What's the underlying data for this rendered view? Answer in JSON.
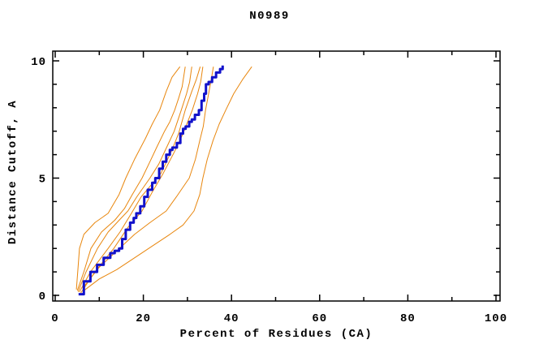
{
  "page": {
    "background": "#ffffff"
  },
  "chart_data": {
    "type": "line",
    "title": "N0989",
    "xlabel": "Percent of Residues (CA)",
    "ylabel": "Distance Cutoff, A",
    "xlim": [
      0,
      100
    ],
    "ylim": [
      0,
      10
    ],
    "grid": false,
    "legend": "none",
    "axis_color": "#000000",
    "x_major_ticks": [
      0,
      20,
      40,
      60,
      80,
      100
    ],
    "x_minor_ticks": [
      10,
      30,
      50,
      70,
      90
    ],
    "x_tick_labels": [
      "0",
      "20",
      "40",
      "60",
      "80",
      "100"
    ],
    "y_major_ticks": [
      0,
      5,
      10
    ],
    "y_minor_ticks": [
      1,
      2,
      3,
      4,
      6,
      7,
      8,
      9
    ],
    "y_tick_labels": [
      "0",
      "5",
      "10"
    ],
    "series": [
      {
        "name": "orange-model-1",
        "color": "#e8860d",
        "width": 1,
        "stepped": false,
        "points": [
          [
            4.8,
            0.25
          ],
          [
            5.2,
            1.2
          ],
          [
            5.5,
            2.0
          ],
          [
            6.5,
            2.6
          ],
          [
            9.0,
            3.1
          ],
          [
            12.0,
            3.5
          ],
          [
            14.5,
            4.3
          ],
          [
            16.0,
            5.0
          ],
          [
            18.0,
            5.8
          ],
          [
            20.5,
            6.7
          ],
          [
            22.0,
            7.3
          ],
          [
            23.7,
            7.9
          ],
          [
            25.2,
            8.7
          ],
          [
            26.5,
            9.3
          ],
          [
            28.3,
            9.75
          ]
        ]
      },
      {
        "name": "orange-model-2",
        "color": "#e8860d",
        "width": 1,
        "stepped": false,
        "points": [
          [
            5.0,
            0.2
          ],
          [
            6.5,
            1.0
          ],
          [
            8.1,
            2.0
          ],
          [
            10.5,
            2.7
          ],
          [
            13.5,
            3.2
          ],
          [
            15.7,
            3.7
          ],
          [
            17.5,
            4.3
          ],
          [
            19.7,
            5.0
          ],
          [
            21.5,
            5.7
          ],
          [
            23.0,
            6.3
          ],
          [
            24.8,
            7.0
          ],
          [
            26.0,
            7.4
          ],
          [
            27.1,
            7.9
          ],
          [
            28.0,
            8.4
          ],
          [
            28.8,
            8.9
          ],
          [
            29.5,
            9.75
          ]
        ]
      },
      {
        "name": "orange-model-3",
        "color": "#e8860d",
        "width": 1,
        "stepped": false,
        "points": [
          [
            5.2,
            0.15
          ],
          [
            7.0,
            1.0
          ],
          [
            9.6,
            2.0
          ],
          [
            12.0,
            2.7
          ],
          [
            14.5,
            3.2
          ],
          [
            16.5,
            3.6
          ],
          [
            18.5,
            4.2
          ],
          [
            21.5,
            5.0
          ],
          [
            23.5,
            5.6
          ],
          [
            25.5,
            6.4
          ],
          [
            27.0,
            7.0
          ],
          [
            28.6,
            7.9
          ],
          [
            29.8,
            8.6
          ],
          [
            30.5,
            9.1
          ],
          [
            31.0,
            9.75
          ]
        ]
      },
      {
        "name": "orange-model-4",
        "color": "#e8860d",
        "width": 1,
        "stepped": false,
        "points": [
          [
            5.5,
            0.15
          ],
          [
            8.0,
            1.0
          ],
          [
            12.0,
            2.0
          ],
          [
            14.7,
            2.7
          ],
          [
            17.3,
            3.5
          ],
          [
            19.5,
            4.2
          ],
          [
            24.0,
            5.2
          ],
          [
            26.5,
            6.2
          ],
          [
            28.0,
            6.9
          ],
          [
            29.5,
            7.9
          ],
          [
            31.0,
            8.7
          ],
          [
            32.0,
            9.2
          ],
          [
            32.9,
            9.75
          ]
        ]
      },
      {
        "name": "orange-model-5",
        "color": "#e8860d",
        "width": 1,
        "stepped": false,
        "points": [
          [
            5.8,
            0.1
          ],
          [
            9.0,
            1.0
          ],
          [
            13.3,
            2.0
          ],
          [
            16.5,
            2.9
          ],
          [
            19.7,
            3.6
          ],
          [
            22.0,
            4.4
          ],
          [
            24.5,
            5.2
          ],
          [
            27.0,
            6.1
          ],
          [
            29.0,
            6.9
          ],
          [
            31.1,
            7.9
          ],
          [
            32.3,
            8.6
          ],
          [
            33.0,
            9.1
          ],
          [
            33.5,
            9.75
          ]
        ]
      },
      {
        "name": "orange-model-6",
        "color": "#e8860d",
        "width": 1,
        "stepped": false,
        "points": [
          [
            6.2,
            0.3
          ],
          [
            10.0,
            1.2
          ],
          [
            14.0,
            1.9
          ],
          [
            18.0,
            2.6
          ],
          [
            21.5,
            3.1
          ],
          [
            25.2,
            3.6
          ],
          [
            27.5,
            4.2
          ],
          [
            30.4,
            5.0
          ],
          [
            31.8,
            5.8
          ],
          [
            32.8,
            6.6
          ],
          [
            33.6,
            7.2
          ],
          [
            34.1,
            7.9
          ],
          [
            34.8,
            8.6
          ],
          [
            35.4,
            9.2
          ],
          [
            35.9,
            9.75
          ]
        ]
      },
      {
        "name": "orange-model-7",
        "color": "#e8860d",
        "width": 1,
        "stepped": false,
        "points": [
          [
            6.5,
            0.2
          ],
          [
            10.0,
            0.7
          ],
          [
            14.0,
            1.1
          ],
          [
            18.0,
            1.6
          ],
          [
            22.0,
            2.1
          ],
          [
            26.0,
            2.6
          ],
          [
            29.0,
            3.0
          ],
          [
            31.5,
            3.6
          ],
          [
            32.8,
            4.3
          ],
          [
            33.5,
            5.0
          ],
          [
            34.5,
            5.8
          ],
          [
            35.8,
            6.6
          ],
          [
            37.2,
            7.3
          ],
          [
            38.7,
            7.9
          ],
          [
            40.5,
            8.6
          ],
          [
            42.5,
            9.2
          ],
          [
            44.6,
            9.75
          ]
        ]
      },
      {
        "name": "blue-main",
        "color": "#1212cb",
        "width": 3,
        "stepped": true,
        "points": [
          [
            5.3,
            0.05
          ],
          [
            6.5,
            0.6
          ],
          [
            8.0,
            1.0
          ],
          [
            9.5,
            1.3
          ],
          [
            11.0,
            1.6
          ],
          [
            12.5,
            1.8
          ],
          [
            13.5,
            1.9
          ],
          [
            14.5,
            2.0
          ],
          [
            15.2,
            2.4
          ],
          [
            16.0,
            2.8
          ],
          [
            17.0,
            3.1
          ],
          [
            17.8,
            3.3
          ],
          [
            18.4,
            3.5
          ],
          [
            19.3,
            3.8
          ],
          [
            20.2,
            4.2
          ],
          [
            21.0,
            4.5
          ],
          [
            22.0,
            4.8
          ],
          [
            22.7,
            5.0
          ],
          [
            23.6,
            5.4
          ],
          [
            24.4,
            5.7
          ],
          [
            25.2,
            6.0
          ],
          [
            26.0,
            6.2
          ],
          [
            26.6,
            6.3
          ],
          [
            27.6,
            6.5
          ],
          [
            28.4,
            6.9
          ],
          [
            29.0,
            7.1
          ],
          [
            29.6,
            7.2
          ],
          [
            30.4,
            7.4
          ],
          [
            31.0,
            7.5
          ],
          [
            31.7,
            7.7
          ],
          [
            32.6,
            7.9
          ],
          [
            33.2,
            8.3
          ],
          [
            33.8,
            8.6
          ],
          [
            34.2,
            9.0
          ],
          [
            34.8,
            9.1
          ],
          [
            35.6,
            9.3
          ],
          [
            36.5,
            9.5
          ],
          [
            37.4,
            9.65
          ],
          [
            38.0,
            9.8
          ]
        ]
      }
    ]
  }
}
